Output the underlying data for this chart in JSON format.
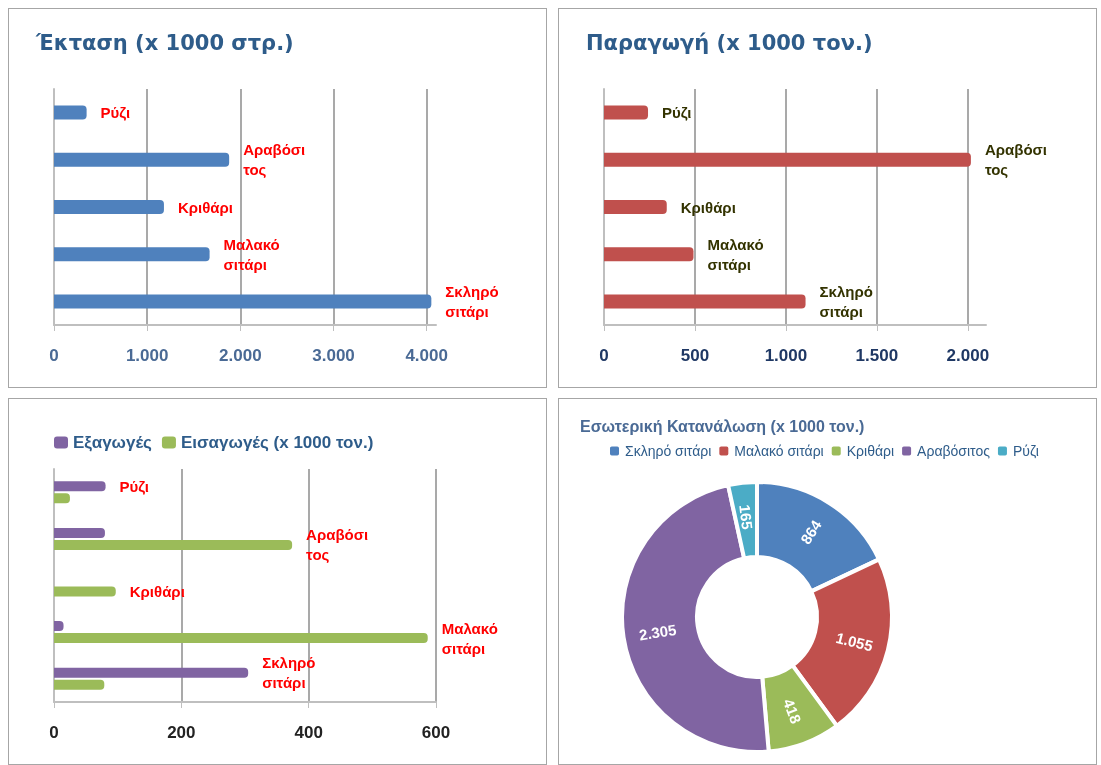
{
  "chart_data": [
    {
      "type": "bar",
      "orientation": "horizontal",
      "title": "Έκταση (x 1000 στρ.)",
      "categories": [
        "Ρύζι",
        "Αραβόσιτος",
        "Κριθάρι",
        "Μαλακό σιτάρι",
        "Σκληρό σιτάρι"
      ],
      "values": [
        350,
        1880,
        1180,
        1670,
        4050
      ],
      "color": "#4f81bd",
      "xlim": [
        0,
        4100
      ],
      "xticks": [
        0,
        {
          "value": 1000,
          "label": "1.000"
        },
        {
          "value": 2000,
          "label": "2.000"
        },
        {
          "value": 3000,
          "label": "3.000"
        },
        {
          "value": 4000,
          "label": "4.000"
        }
      ],
      "grid": "x"
    },
    {
      "type": "bar",
      "orientation": "horizontal",
      "title": "Παραγωγή (x 1000 τον.)",
      "categories": [
        "Ρύζι",
        "Αραβόσιτος",
        "Κριθάρι",
        "Μαλακό σιτάρι",
        "Σκληρό σιτάρι"
      ],
      "values": [
        242,
        2017,
        345,
        492,
        1108
      ],
      "color": "#c0504d",
      "xlim": [
        0,
        2100
      ],
      "xticks": [
        0,
        500,
        {
          "value": 1000,
          "label": "1.000"
        },
        {
          "value": 1500,
          "label": "1.500"
        },
        {
          "value": 2000,
          "label": "2.000"
        }
      ],
      "grid": "x"
    },
    {
      "type": "bar",
      "orientation": "horizontal",
      "categories": [
        "Ρύζι",
        "Αραβόσιτος",
        "Κριθάρι",
        "Μαλακό σιτάρι",
        "Σκληρό σιτάρι"
      ],
      "series": [
        {
          "name": "Εξαγωγές",
          "color": "#8064a2",
          "values": [
            81,
            80,
            null,
            15,
            305
          ]
        },
        {
          "name": "Εισαγωγές (x 1000 τον.)",
          "color": "#9bbb59",
          "values": [
            25,
            374,
            97,
            587,
            79
          ]
        }
      ],
      "xlim": [
        0,
        600
      ],
      "xticks": [
        0,
        200,
        400,
        600
      ],
      "grid": "x",
      "legend": "top left"
    },
    {
      "type": "donut",
      "title": "Εσωτερική Κατανάλωση (x 1000 τον.)",
      "categories": [
        "Σκληρό σιτάρι",
        "Μαλακό σιτάρι",
        "Κριθάρι",
        "Αραβόσιτος",
        "Ρύζι"
      ],
      "values": [
        864,
        1055,
        418,
        2305,
        165
      ],
      "colors": [
        "#4f81bd",
        "#c0504d",
        "#9bbb59",
        "#8064a2",
        "#4bacc6"
      ],
      "value_labels": [
        "864",
        "1.055",
        "418",
        "2.305",
        "165"
      ],
      "legend": "top"
    }
  ]
}
